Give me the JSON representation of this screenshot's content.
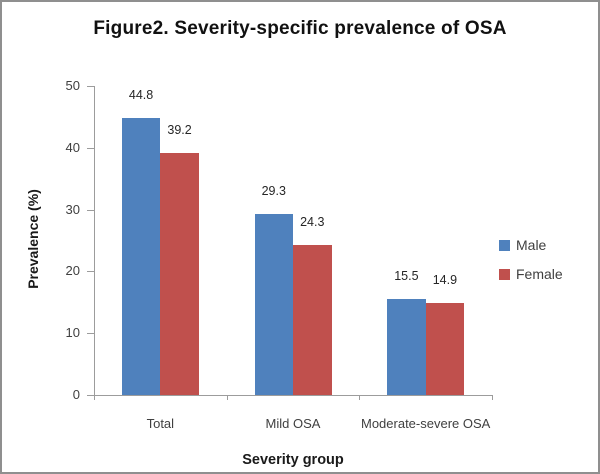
{
  "figure": {
    "border_color": "#8F8F8F",
    "background": "#FFFFFF"
  },
  "chart_data": {
    "type": "bar",
    "title": "Figure2. Severity-specific prevalence of OSA",
    "categories": [
      "Total",
      "Mild OSA",
      "Moderate-severe OSA"
    ],
    "series": [
      {
        "name": "Male",
        "color": "#4F81BD",
        "values": [
          44.8,
          29.3,
          15.5
        ]
      },
      {
        "name": "Female",
        "color": "#C0504D",
        "values": [
          39.2,
          24.3,
          14.9
        ]
      }
    ],
    "value_labels": [
      "44.8",
      "39.2",
      "29.3",
      "24.3",
      "15.5",
      "14.9"
    ],
    "xlabel": "Severity group",
    "ylabel": "Prevalence (%)",
    "ylim": [
      0,
      50
    ],
    "yticks": [
      0,
      10,
      20,
      30,
      40,
      50
    ],
    "grid": false,
    "legend_position": "right",
    "axis_color": "#9C9C9C"
  }
}
